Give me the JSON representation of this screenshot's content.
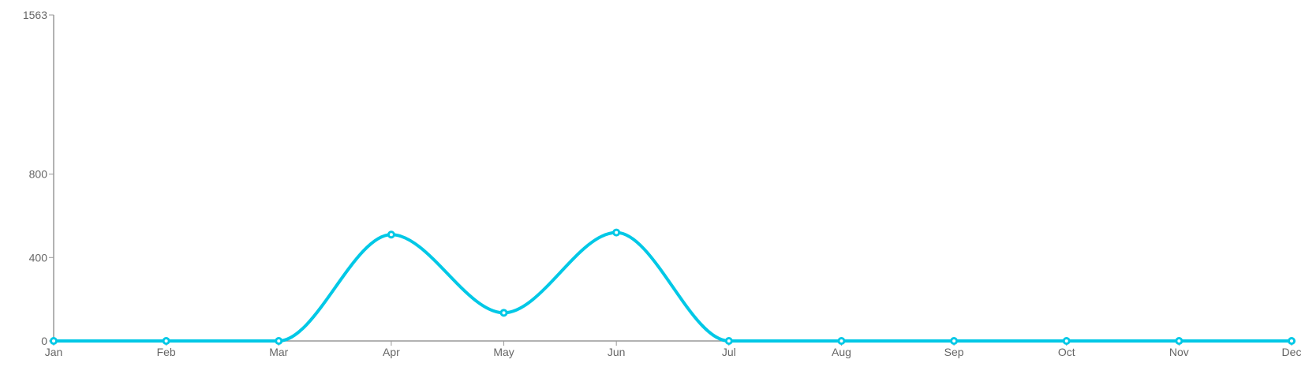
{
  "chart_data": {
    "type": "line",
    "title": "",
    "xlabel": "",
    "ylabel": "",
    "categories": [
      "Jan",
      "Feb",
      "Mar",
      "Apr",
      "May",
      "Jun",
      "Jul",
      "Aug",
      "Sep",
      "Oct",
      "Nov",
      "Dec"
    ],
    "series": [
      {
        "values": [
          0,
          0,
          0,
          510,
          135,
          520,
          0,
          0,
          0,
          0,
          0,
          0
        ],
        "color": "#00c8e6"
      }
    ],
    "ylim": [
      0,
      1563
    ],
    "yticks": [
      0,
      400,
      800,
      1563
    ],
    "grid": false,
    "legend": "none",
    "smooth": true,
    "axis_color": "#999999",
    "label_color": "#666666"
  }
}
